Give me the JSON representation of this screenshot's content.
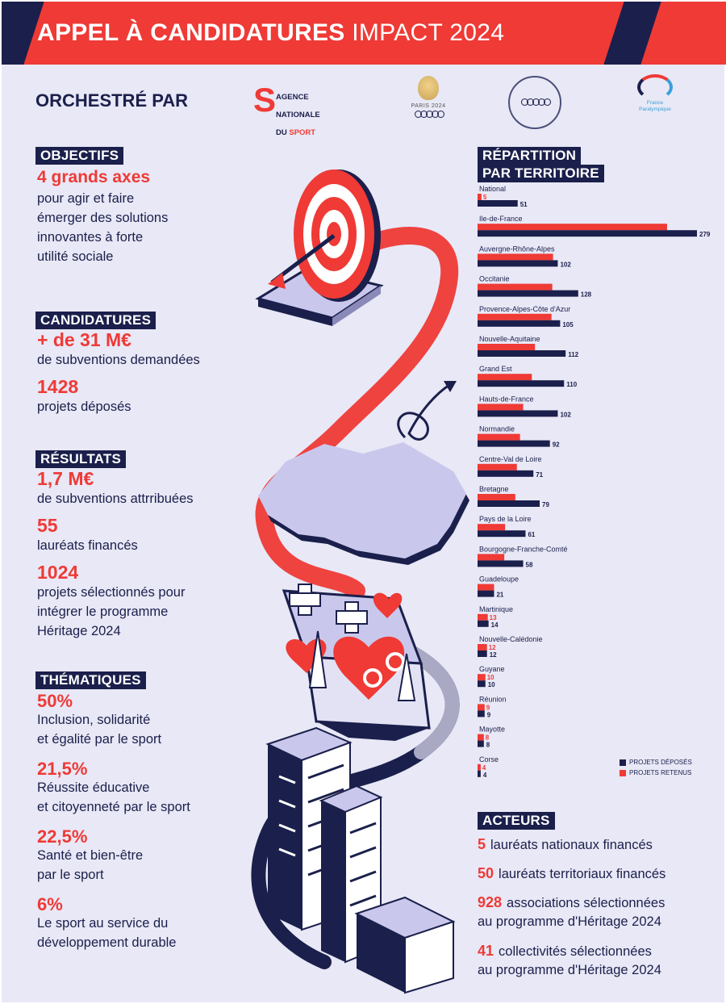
{
  "header": {
    "title_bold": "APPEL À CANDIDATURES",
    "title_light": "IMPACT 2024"
  },
  "orchestre": {
    "label": "ORCHESTRÉ PAR",
    "ans_logo": {
      "symbol": "S",
      "line1": "AGENCE",
      "line2": "NATIONALE",
      "line3_prefix": "DU ",
      "line3_red": "SPORT"
    },
    "paris_logo": {
      "text": "PARIS 2024"
    },
    "fp_logo": {
      "line1": "France",
      "line2": "Paralympique"
    }
  },
  "objectifs": {
    "label": "OBJECTIFS",
    "headline": "4 grands axes",
    "desc": [
      "pour agir et faire",
      "émerger des solutions",
      "innovantes à forte",
      "utilité sociale"
    ]
  },
  "candidatures": {
    "label": "CANDIDATURES",
    "stat1_value": "+ de 31 M€",
    "stat1_desc": "de subventions demandées",
    "stat2_value": "1428",
    "stat2_desc": "projets déposés"
  },
  "resultats": {
    "label": "RÉSULTATS",
    "stat1_value": "1,7 M€",
    "stat1_desc": "de subventions attrribuées",
    "stat2_value": "55",
    "stat2_desc": "lauréats financés",
    "stat3_value": "1024",
    "stat3_desc": [
      "projets sélectionnés pour",
      "intégrer le programme",
      "Héritage 2024"
    ]
  },
  "thematiques": {
    "label": "THÉMATIQUES",
    "items": [
      {
        "pct": "50%",
        "desc": [
          "Inclusion, solidarité",
          "et égalité par le sport"
        ]
      },
      {
        "pct": "21,5%",
        "desc": [
          "Réussite éducative",
          "et citoyenneté par le sport"
        ]
      },
      {
        "pct": "22,5%",
        "desc": [
          "Santé et bien-être",
          "par le sport"
        ]
      },
      {
        "pct": "6%",
        "desc": [
          "Le sport au service du",
          "développement durable"
        ]
      }
    ]
  },
  "repartition": {
    "label_line1": "RÉPARTITION",
    "label_line2": "PAR TERRITOIRE"
  },
  "chart_data": {
    "type": "bar",
    "orientation": "horizontal",
    "title": "RÉPARTITION PAR TERRITOIRE",
    "categories": [
      "National",
      "Ile-de-France",
      "Auvergne-Rhône-Alpes",
      "Occitanie",
      "Provence-Alpes-Côte d'Azur",
      "Nouvelle-Aquitaine",
      "Grand Est",
      "Hauts-de-France",
      "Normandie",
      "Centre-Val de Loire",
      "Bretagne",
      "Pays de la Loire",
      "Bourgogne-Franche-Comté",
      "Guadeloupe",
      "Martinique",
      "Nouvelle-Calédonie",
      "Guyane",
      "Réunion",
      "Mayotte",
      "Corse"
    ],
    "series": [
      {
        "name": "PROJETS RETENUS",
        "color": "#ef3a36",
        "values": [
          5,
          241,
          96,
          95,
          94,
          73,
          69,
          58,
          54,
          50,
          48,
          35,
          34,
          21,
          13,
          12,
          10,
          9,
          8,
          4
        ]
      },
      {
        "name": "PROJETS DÉPOSÉS",
        "color": "#1b1f4b",
        "values": [
          51,
          279,
          102,
          128,
          105,
          112,
          110,
          102,
          92,
          71,
          79,
          61,
          58,
          21,
          14,
          12,
          10,
          9,
          8,
          4
        ]
      }
    ],
    "xlim": [
      0,
      279
    ],
    "legend": [
      "PROJETS DÉPOSÉS",
      "PROJETS RETENUS"
    ],
    "legend_position": "bottom-right"
  },
  "acteurs": {
    "label": "ACTEURS",
    "lines": [
      {
        "num": "5",
        "text": "lauréats nationaux financés"
      },
      {
        "num": "50",
        "text": "lauréats territoriaux financés"
      },
      {
        "num": "928",
        "text": "associations sélectionnées",
        "text2": "au programme d'Héritage 2024"
      },
      {
        "num": "41",
        "text": "collectivités sélectionnées",
        "text2": "au programme d'Héritage 2024"
      }
    ]
  },
  "colors": {
    "navy": "#1b1f4b",
    "red": "#ef3a36",
    "background": "#e8e8f6",
    "lavender": "#c9c8ec"
  }
}
